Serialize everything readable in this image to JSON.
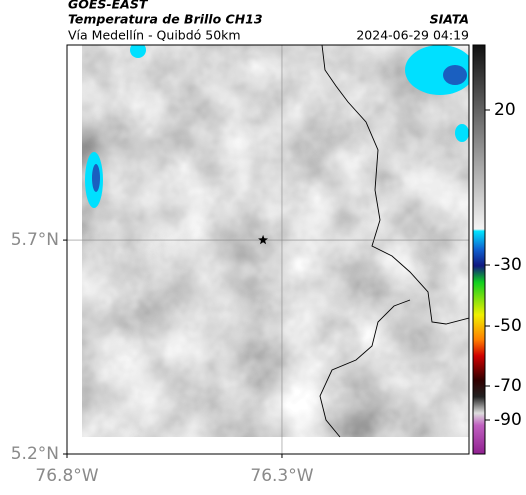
{
  "header": {
    "source": "GOES-EAST",
    "title": "Temperatura de Brillo CH13",
    "subtitle": "Vía Medellín - Quibdó 50km",
    "agency": "SIATA",
    "timestamp": "2024-06-29 04:19"
  },
  "map": {
    "lon_range": [
      -76.8,
      -75.865
    ],
    "lat_range": [
      5.2,
      6.156
    ],
    "lat_ticks": [
      {
        "value": 5.2,
        "label": "5.2°N"
      },
      {
        "value": 5.7,
        "label": "5.7°N"
      }
    ],
    "lon_ticks": [
      {
        "value": -76.8,
        "label": "76.8°W"
      },
      {
        "value": -76.3,
        "label": "76.3°W"
      }
    ],
    "marker": {
      "lon": -76.344,
      "lat": 5.7
    }
  },
  "colorbar": {
    "ticks": [
      20,
      -30,
      -50,
      -70,
      -90
    ]
  }
}
